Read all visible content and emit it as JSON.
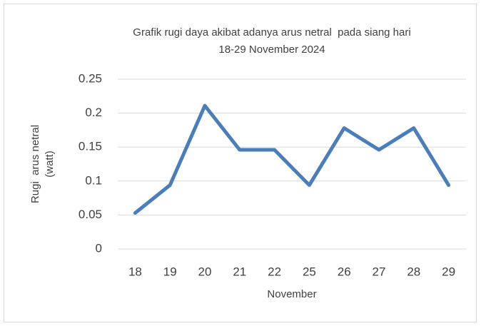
{
  "chart_data": {
    "type": "line",
    "title": [
      "Grafik rugi daya akibat adanya arus netral  pada siang hari",
      "18-29 November 2024"
    ],
    "xlabel": "November",
    "ylabel": [
      "Rugi  arus netral",
      "(watt)"
    ],
    "categories": [
      "18",
      "19",
      "20",
      "21",
      "22",
      "25",
      "26",
      "27",
      "28",
      "29"
    ],
    "series": [
      {
        "color": "#4a7ebb",
        "values": [
          0.053,
          0.094,
          0.211,
          0.146,
          0.146,
          0.094,
          0.178,
          0.146,
          0.178,
          0.094
        ]
      }
    ],
    "ylim": [
      0,
      0.25
    ],
    "yticks": [
      0,
      0.05,
      0.1,
      0.15,
      0.2,
      0.25
    ],
    "grid": true
  }
}
